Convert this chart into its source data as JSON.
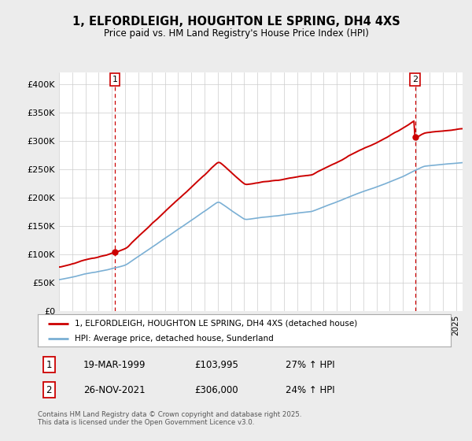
{
  "title_line1": "1, ELFORDLEIGH, HOUGHTON LE SPRING, DH4 4XS",
  "title_line2": "Price paid vs. HM Land Registry's House Price Index (HPI)",
  "ylabel_ticks": [
    "£0",
    "£50K",
    "£100K",
    "£150K",
    "£200K",
    "£250K",
    "£300K",
    "£350K",
    "£400K"
  ],
  "ytick_values": [
    0,
    50000,
    100000,
    150000,
    200000,
    250000,
    300000,
    350000,
    400000
  ],
  "ylim": [
    0,
    420000
  ],
  "xlim_start": 1995.0,
  "xlim_end": 2025.5,
  "red_color": "#cc0000",
  "blue_color": "#7aafd4",
  "marker1_x": 1999.22,
  "marker1_y": 103995,
  "marker2_x": 2021.91,
  "marker2_y": 306000,
  "marker1_date": "19-MAR-1999",
  "marker1_price": "£103,995",
  "marker1_hpi": "27% ↑ HPI",
  "marker2_date": "26-NOV-2021",
  "marker2_price": "£306,000",
  "marker2_hpi": "24% ↑ HPI",
  "legend_entry1": "1, ELFORDLEIGH, HOUGHTON LE SPRING, DH4 4XS (detached house)",
  "legend_entry2": "HPI: Average price, detached house, Sunderland",
  "footnote": "Contains HM Land Registry data © Crown copyright and database right 2025.\nThis data is licensed under the Open Government Licence v3.0.",
  "bg_color": "#ececec",
  "plot_bg_color": "#ffffff",
  "grid_color": "#cccccc"
}
